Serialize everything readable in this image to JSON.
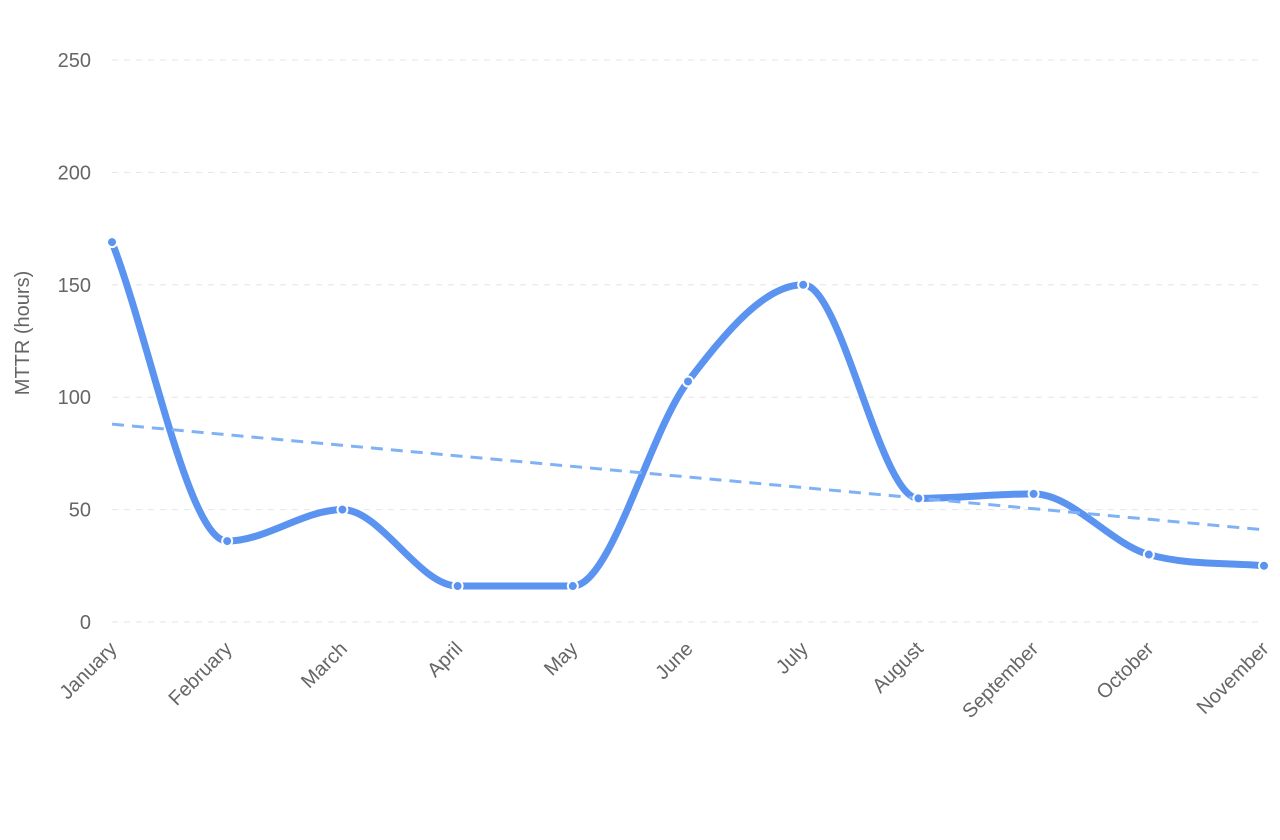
{
  "chart_data": {
    "type": "line",
    "title": "",
    "xlabel": "",
    "ylabel": "MTTR (hours)",
    "ylim": [
      0,
      250
    ],
    "y_ticks": [
      0,
      50,
      100,
      150,
      200,
      250
    ],
    "grid": true,
    "legend": "none",
    "categories": [
      "January",
      "February",
      "March",
      "April",
      "May",
      "June",
      "July",
      "August",
      "September",
      "October",
      "November"
    ],
    "series": [
      {
        "values": [
          169,
          36,
          50,
          16,
          16,
          107,
          150,
          55,
          57,
          30,
          25
        ],
        "color": "#5b93f0",
        "style": "solid-smooth",
        "markers": true
      },
      {
        "values": [
          88,
          83.3,
          78.6,
          73.9,
          69.2,
          64.5,
          59.8,
          55.1,
          50.4,
          45.7,
          41
        ],
        "color": "#7fb2f5",
        "style": "dashed-trend",
        "markers": false
      }
    ]
  }
}
